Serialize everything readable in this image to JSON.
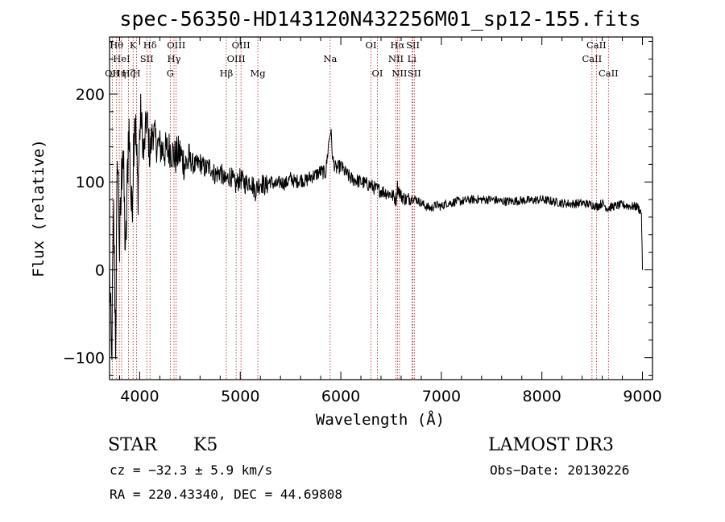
{
  "chart_data": {
    "type": "line",
    "title": "spec-56350-HD143120N432256M01_sp12-155.fits",
    "xlabel": "Wavelength (Å)",
    "ylabel": "Flux (relative)",
    "xlim": [
      3700,
      9100
    ],
    "ylim": [
      -125,
      265
    ],
    "xticks": [
      {
        "value": 4000,
        "label": "4000"
      },
      {
        "value": 5000,
        "label": "5000"
      },
      {
        "value": 6000,
        "label": "6000"
      },
      {
        "value": 7000,
        "label": "7000"
      },
      {
        "value": 8000,
        "label": "8000"
      },
      {
        "value": 9000,
        "label": "9000"
      }
    ],
    "yticks": [
      {
        "value": -100,
        "label": "−100"
      },
      {
        "value": 0,
        "label": "0"
      },
      {
        "value": 100,
        "label": "100"
      },
      {
        "value": 200,
        "label": "200"
      }
    ],
    "lines": [
      {
        "wl": 3727,
        "label": "OII",
        "row": 3
      },
      {
        "wl": 3770,
        "label": "Hθ",
        "row": 1
      },
      {
        "wl": 3797,
        "label": "Hη",
        "row": 3
      },
      {
        "wl": 3820,
        "label": "HeI",
        "row": 2
      },
      {
        "wl": 3889,
        "label": "Hζ",
        "row": 3
      },
      {
        "wl": 3934,
        "label": "K",
        "row": 1
      },
      {
        "wl": 3969,
        "label": "H",
        "row": 3
      },
      {
        "wl": 4070,
        "label": "SII",
        "row": 2
      },
      {
        "wl": 4102,
        "label": "Hδ",
        "row": 1
      },
      {
        "wl": 4304,
        "label": "G",
        "row": 3
      },
      {
        "wl": 4341,
        "label": "Hγ",
        "row": 2
      },
      {
        "wl": 4363,
        "label": "OIII",
        "row": 1
      },
      {
        "wl": 4861,
        "label": "Hβ",
        "row": 3
      },
      {
        "wl": 4959,
        "label": "OIII",
        "row": 2
      },
      {
        "wl": 5007,
        "label": "OIII",
        "row": 1
      },
      {
        "wl": 5175,
        "label": "Mg",
        "row": 3
      },
      {
        "wl": 5894,
        "label": "Na",
        "row": 2
      },
      {
        "wl": 6300,
        "label": "OI",
        "row": 1
      },
      {
        "wl": 6364,
        "label": "OI",
        "row": 3
      },
      {
        "wl": 6548,
        "label": "NII",
        "row": 2
      },
      {
        "wl": 6563,
        "label": "Hα",
        "row": 1
      },
      {
        "wl": 6583,
        "label": "NII",
        "row": 3
      },
      {
        "wl": 6707,
        "label": "Li",
        "row": 2
      },
      {
        "wl": 6717,
        "label": "SII",
        "row": 1
      },
      {
        "wl": 6731,
        "label": "SII",
        "row": 3
      },
      {
        "wl": 8498,
        "label": "CaII",
        "row": 2
      },
      {
        "wl": 8542,
        "label": "CaII",
        "row": 1
      },
      {
        "wl": 8662,
        "label": "CaII",
        "row": 3
      }
    ],
    "series": [
      {
        "name": "flux",
        "x": [
          3700,
          3720,
          3740,
          3760,
          3780,
          3800,
          3830,
          3860,
          3890,
          3920,
          3950,
          3980,
          4010,
          4040,
          4070,
          4100,
          4130,
          4160,
          4200,
          4250,
          4300,
          4350,
          4400,
          4450,
          4500,
          4550,
          4600,
          4650,
          4700,
          4750,
          4800,
          4850,
          4900,
          4950,
          5000,
          5050,
          5100,
          5150,
          5200,
          5250,
          5300,
          5350,
          5400,
          5450,
          5500,
          5550,
          5600,
          5650,
          5700,
          5750,
          5800,
          5850,
          5880,
          5900,
          5920,
          5950,
          6000,
          6050,
          6100,
          6150,
          6200,
          6250,
          6300,
          6350,
          6400,
          6450,
          6500,
          6550,
          6563,
          6600,
          6650,
          6700,
          6750,
          6800,
          6850,
          6900,
          6950,
          7000,
          7050,
          7100,
          7150,
          7200,
          7300,
          7400,
          7500,
          7600,
          7700,
          7800,
          7900,
          8000,
          8100,
          8200,
          8300,
          8400,
          8500,
          8550,
          8600,
          8650,
          8700,
          8800,
          8900,
          8950,
          8990,
          9000
        ],
        "y": [
          0,
          -110,
          60,
          -80,
          140,
          20,
          150,
          10,
          170,
          60,
          190,
          90,
          180,
          130,
          175,
          130,
          160,
          145,
          140,
          135,
          138,
          128,
          133,
          120,
          125,
          118,
          122,
          115,
          118,
          108,
          112,
          100,
          108,
          96,
          104,
          98,
          102,
          90,
          100,
          95,
          101,
          96,
          100,
          98,
          104,
          100,
          103,
          101,
          106,
          108,
          112,
          110,
          145,
          160,
          125,
          115,
          118,
          110,
          104,
          102,
          100,
          98,
          96,
          92,
          90,
          88,
          86,
          80,
          95,
          84,
          80,
          82,
          80,
          76,
          72,
          70,
          74,
          72,
          76,
          76,
          78,
          78,
          80,
          80,
          80,
          78,
          78,
          79,
          79,
          80,
          78,
          76,
          75,
          76,
          74,
          72,
          76,
          70,
          72,
          74,
          72,
          72,
          65,
          0
        ]
      }
    ]
  },
  "info": {
    "object_class": "STAR",
    "subclass": "K5",
    "survey": "LAMOST DR3",
    "cz": "cz = −32.3 ± 5.9 km/s",
    "obs_date": "Obs−Date: 20130226",
    "radec": "RA = 220.43340, DEC =  44.69808"
  }
}
